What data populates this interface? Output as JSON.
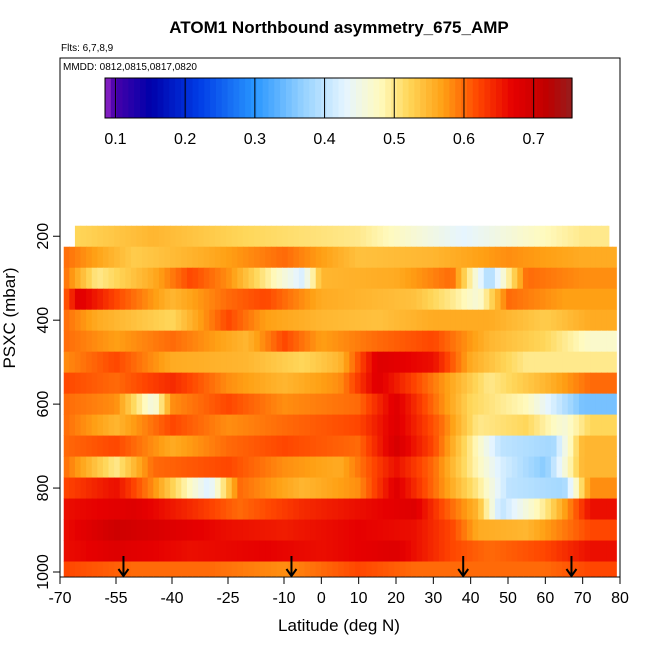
{
  "chart_data": {
    "type": "heatmap",
    "title": "ATOM1 Northbound asymmetry_675_AMP",
    "flights_note": "Flts: 6,7,8,9",
    "dates_note": "MMDD: 0812,0815,0817,0820",
    "xlabel": "Latitude (deg N)",
    "ylabel": "PSXC (mbar)",
    "xlim": [
      -70,
      80
    ],
    "ylim": [
      1010,
      100
    ],
    "x_ticks": [
      -70,
      -55,
      -40,
      -25,
      -10,
      0,
      10,
      20,
      30,
      40,
      50,
      60,
      70,
      80
    ],
    "x_tick_labels": [
      "-70",
      "-55",
      "-40",
      "-25",
      "-10",
      "0",
      "10",
      "20",
      "30",
      "40",
      "50",
      "60",
      "70",
      "80"
    ],
    "y_ticks": [
      200,
      400,
      600,
      800,
      1000
    ],
    "y_tick_labels": [
      "200",
      "400",
      "600",
      "800",
      "1000"
    ],
    "colorbar": {
      "range": [
        0.085,
        0.755
      ],
      "ticks": [
        0.1,
        0.2,
        0.3,
        0.4,
        0.5,
        0.6,
        0.7
      ],
      "tick_labels": [
        "0.1",
        "0.2",
        "0.3",
        "0.4",
        "0.5",
        "0.6",
        "0.7"
      ]
    },
    "layers": [
      {
        "p_top": 175,
        "p_bot": 225,
        "x_start": -66,
        "x_end": 77,
        "segments": [
          [
            -66,
            0.52
          ],
          [
            -45,
            0.55
          ],
          [
            -20,
            0.52
          ],
          [
            10,
            0.5
          ],
          [
            38,
            0.43
          ],
          [
            55,
            0.47
          ],
          [
            70,
            0.5
          ]
        ]
      },
      {
        "p_top": 225,
        "p_bot": 275,
        "x_start": -69,
        "x_end": 79,
        "segments": [
          [
            -69,
            0.6
          ],
          [
            -50,
            0.53
          ],
          [
            -30,
            0.56
          ],
          [
            -10,
            0.6
          ],
          [
            10,
            0.54
          ],
          [
            30,
            0.55
          ],
          [
            50,
            0.58
          ],
          [
            70,
            0.56
          ]
        ]
      },
      {
        "p_top": 275,
        "p_bot": 325,
        "x_start": -69,
        "x_end": 79,
        "segments": [
          [
            -69,
            0.6
          ],
          [
            -60,
            0.5
          ],
          [
            -45,
            0.56
          ],
          [
            -35,
            0.62
          ],
          [
            -25,
            0.58
          ],
          [
            -5,
            0.42
          ],
          [
            0,
            0.55
          ],
          [
            20,
            0.56
          ],
          [
            35,
            0.6
          ],
          [
            45,
            0.38
          ],
          [
            55,
            0.6
          ],
          [
            70,
            0.58
          ]
        ]
      },
      {
        "p_top": 325,
        "p_bot": 375,
        "x_start": -69,
        "x_end": 79,
        "segments": [
          [
            -69,
            0.6
          ],
          [
            -65,
            0.68
          ],
          [
            -55,
            0.62
          ],
          [
            -40,
            0.55
          ],
          [
            -25,
            0.6
          ],
          [
            -15,
            0.62
          ],
          [
            0,
            0.56
          ],
          [
            25,
            0.54
          ],
          [
            35,
            0.5
          ],
          [
            42,
            0.46
          ],
          [
            50,
            0.6
          ],
          [
            65,
            0.57
          ]
        ]
      },
      {
        "p_top": 375,
        "p_bot": 425,
        "x_start": -69,
        "x_end": 79,
        "segments": [
          [
            -69,
            0.6
          ],
          [
            -60,
            0.56
          ],
          [
            -40,
            0.52
          ],
          [
            -25,
            0.62
          ],
          [
            -15,
            0.57
          ],
          [
            0,
            0.55
          ],
          [
            15,
            0.54
          ],
          [
            30,
            0.56
          ],
          [
            45,
            0.56
          ],
          [
            60,
            0.53
          ],
          [
            72,
            0.56
          ]
        ]
      },
      {
        "p_top": 425,
        "p_bot": 475,
        "x_start": -69,
        "x_end": 79,
        "segments": [
          [
            -69,
            0.6
          ],
          [
            -55,
            0.57
          ],
          [
            -40,
            0.6
          ],
          [
            -20,
            0.55
          ],
          [
            -10,
            0.62
          ],
          [
            0,
            0.57
          ],
          [
            15,
            0.6
          ],
          [
            30,
            0.62
          ],
          [
            45,
            0.55
          ],
          [
            60,
            0.52
          ],
          [
            72,
            0.47
          ]
        ]
      },
      {
        "p_top": 475,
        "p_bot": 525,
        "x_start": -69,
        "x_end": 79,
        "segments": [
          [
            -69,
            0.58
          ],
          [
            -55,
            0.62
          ],
          [
            -40,
            0.56
          ],
          [
            -20,
            0.55
          ],
          [
            -5,
            0.52
          ],
          [
            5,
            0.55
          ],
          [
            15,
            0.68
          ],
          [
            30,
            0.66
          ],
          [
            40,
            0.56
          ],
          [
            55,
            0.5
          ],
          [
            70,
            0.5
          ]
        ]
      },
      {
        "p_top": 525,
        "p_bot": 575,
        "x_start": -69,
        "x_end": 79,
        "segments": [
          [
            -69,
            0.62
          ],
          [
            -55,
            0.6
          ],
          [
            -40,
            0.64
          ],
          [
            -25,
            0.58
          ],
          [
            -10,
            0.55
          ],
          [
            5,
            0.58
          ],
          [
            15,
            0.68
          ],
          [
            32,
            0.58
          ],
          [
            45,
            0.5
          ],
          [
            60,
            0.55
          ],
          [
            72,
            0.6
          ]
        ]
      },
      {
        "p_top": 575,
        "p_bot": 625,
        "x_start": -69,
        "x_end": 79,
        "segments": [
          [
            -69,
            0.6
          ],
          [
            -55,
            0.58
          ],
          [
            -45,
            0.45
          ],
          [
            -40,
            0.58
          ],
          [
            -25,
            0.62
          ],
          [
            -10,
            0.58
          ],
          [
            10,
            0.6
          ],
          [
            20,
            0.68
          ],
          [
            30,
            0.6
          ],
          [
            40,
            0.52
          ],
          [
            55,
            0.48
          ],
          [
            70,
            0.35
          ]
        ]
      },
      {
        "p_top": 625,
        "p_bot": 675,
        "x_start": -69,
        "x_end": 79,
        "segments": [
          [
            -69,
            0.6
          ],
          [
            -55,
            0.55
          ],
          [
            -40,
            0.62
          ],
          [
            -25,
            0.58
          ],
          [
            -10,
            0.6
          ],
          [
            10,
            0.62
          ],
          [
            20,
            0.68
          ],
          [
            32,
            0.6
          ],
          [
            42,
            0.5
          ],
          [
            55,
            0.52
          ],
          [
            65,
            0.46
          ],
          [
            72,
            0.52
          ]
        ]
      },
      {
        "p_top": 675,
        "p_bot": 725,
        "x_start": -69,
        "x_end": 79,
        "segments": [
          [
            -69,
            0.6
          ],
          [
            -55,
            0.62
          ],
          [
            -40,
            0.56
          ],
          [
            -25,
            0.6
          ],
          [
            -10,
            0.62
          ],
          [
            10,
            0.6
          ],
          [
            20,
            0.69
          ],
          [
            30,
            0.62
          ],
          [
            40,
            0.5
          ],
          [
            48,
            0.4
          ],
          [
            62,
            0.38
          ],
          [
            70,
            0.55
          ]
        ]
      },
      {
        "p_top": 725,
        "p_bot": 775,
        "x_start": -69,
        "x_end": 79,
        "segments": [
          [
            -69,
            0.6
          ],
          [
            -55,
            0.5
          ],
          [
            -45,
            0.6
          ],
          [
            -25,
            0.62
          ],
          [
            -10,
            0.58
          ],
          [
            5,
            0.56
          ],
          [
            20,
            0.66
          ],
          [
            30,
            0.6
          ],
          [
            40,
            0.5
          ],
          [
            48,
            0.42
          ],
          [
            60,
            0.36
          ],
          [
            70,
            0.55
          ]
        ]
      },
      {
        "p_top": 775,
        "p_bot": 825,
        "x_start": -69,
        "x_end": 79,
        "segments": [
          [
            -69,
            0.62
          ],
          [
            -55,
            0.66
          ],
          [
            -45,
            0.58
          ],
          [
            -30,
            0.42
          ],
          [
            -22,
            0.6
          ],
          [
            -5,
            0.55
          ],
          [
            10,
            0.58
          ],
          [
            20,
            0.68
          ],
          [
            30,
            0.6
          ],
          [
            42,
            0.5
          ],
          [
            50,
            0.4
          ],
          [
            65,
            0.38
          ],
          [
            72,
            0.58
          ]
        ]
      },
      {
        "p_top": 825,
        "p_bot": 875,
        "x_start": -69,
        "x_end": 79,
        "segments": [
          [
            -69,
            0.66
          ],
          [
            -50,
            0.68
          ],
          [
            -35,
            0.64
          ],
          [
            -22,
            0.6
          ],
          [
            -5,
            0.64
          ],
          [
            10,
            0.66
          ],
          [
            25,
            0.68
          ],
          [
            32,
            0.62
          ],
          [
            42,
            0.55
          ],
          [
            48,
            0.4
          ],
          [
            60,
            0.5
          ],
          [
            72,
            0.66
          ]
        ]
      },
      {
        "p_top": 875,
        "p_bot": 925,
        "x_start": -69,
        "x_end": 79,
        "segments": [
          [
            -69,
            0.66
          ],
          [
            -55,
            0.7
          ],
          [
            -40,
            0.68
          ],
          [
            -25,
            0.66
          ],
          [
            -10,
            0.65
          ],
          [
            10,
            0.67
          ],
          [
            25,
            0.66
          ],
          [
            35,
            0.62
          ],
          [
            42,
            0.56
          ],
          [
            55,
            0.55
          ],
          [
            72,
            0.62
          ]
        ]
      },
      {
        "p_top": 925,
        "p_bot": 975,
        "x_start": -69,
        "x_end": 79,
        "segments": [
          [
            -69,
            0.66
          ],
          [
            -55,
            0.68
          ],
          [
            -35,
            0.66
          ],
          [
            -15,
            0.67
          ],
          [
            0,
            0.66
          ],
          [
            20,
            0.68
          ],
          [
            35,
            0.62
          ],
          [
            45,
            0.6
          ],
          [
            60,
            0.62
          ],
          [
            72,
            0.66
          ]
        ]
      },
      {
        "p_top": 975,
        "p_bot": 1010,
        "x_start": -69,
        "x_end": 79,
        "segments": [
          [
            -69,
            0.62
          ],
          [
            -50,
            0.6
          ],
          [
            -30,
            0.6
          ],
          [
            -10,
            0.58
          ],
          [
            10,
            0.62
          ],
          [
            25,
            0.6
          ],
          [
            40,
            0.6
          ],
          [
            60,
            0.6
          ],
          [
            72,
            0.62
          ]
        ]
      }
    ],
    "arrows_x": [
      -53,
      -8,
      38,
      67
    ],
    "arrow_p": 1000
  }
}
